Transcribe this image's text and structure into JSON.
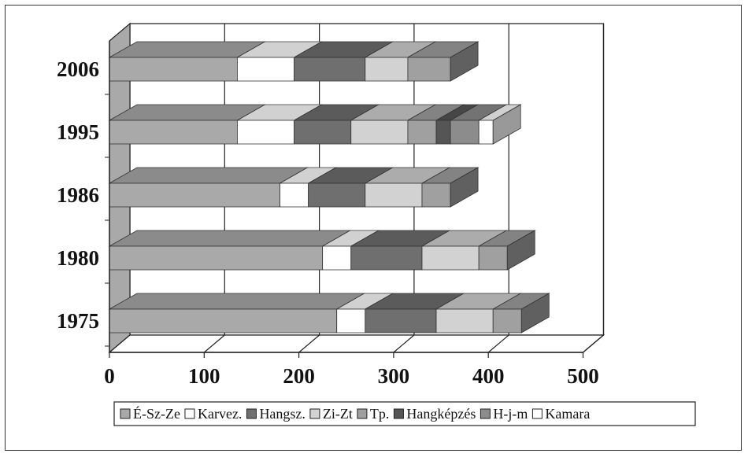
{
  "chart_data": {
    "type": "bar",
    "orientation": "horizontal",
    "stacked": true,
    "three_d": true,
    "title": "",
    "xlabel": "",
    "ylabel": "",
    "xlim": [
      0,
      500
    ],
    "x_ticks": [
      "0",
      "100",
      "200",
      "300",
      "400",
      "500"
    ],
    "categories": [
      "1975",
      "1980",
      "1986",
      "1995",
      "2006"
    ],
    "legend_position": "bottom",
    "grid": true,
    "series": [
      {
        "name": "É-Sz-Ze",
        "color": "#a9a9a9",
        "values": [
          240,
          225,
          180,
          135,
          135
        ]
      },
      {
        "name": "Karvez.",
        "color": "#ffffff",
        "values": [
          30,
          30,
          30,
          60,
          60
        ]
      },
      {
        "name": "Hangsz.",
        "color": "#6f6f6f",
        "values": [
          75,
          75,
          60,
          60,
          75
        ]
      },
      {
        "name": "Zi-Zt",
        "color": "#d2d2d2",
        "values": [
          60,
          60,
          60,
          60,
          45
        ]
      },
      {
        "name": "Tp.",
        "color": "#a0a0a0",
        "values": [
          30,
          30,
          30,
          30,
          45
        ]
      },
      {
        "name": "Hangképzés",
        "color": "#555555",
        "values": [
          0,
          0,
          0,
          15,
          0
        ]
      },
      {
        "name": "H-j-m",
        "color": "#8c8c8c",
        "values": [
          0,
          0,
          0,
          30,
          0
        ]
      },
      {
        "name": "Kamara",
        "color": "#ffffff",
        "values": [
          0,
          0,
          0,
          15,
          0
        ]
      }
    ]
  }
}
